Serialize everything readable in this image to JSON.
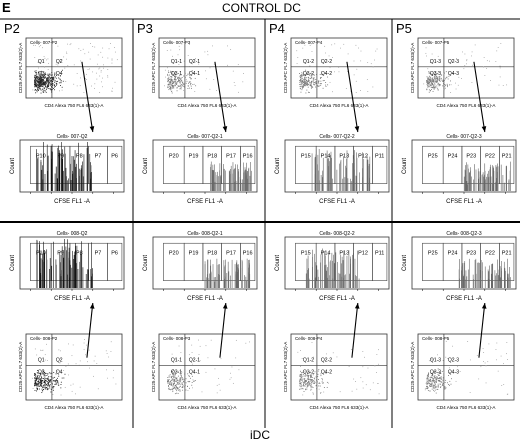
{
  "figure": {
    "panel_letter": "E",
    "top_label": "CONTROL DC",
    "bottom_label": "iDC",
    "columns": [
      "P2",
      "P3",
      "P4",
      "P5"
    ]
  },
  "top_row": {
    "scatter": [
      {
        "title": "Cells- 007-P2",
        "quadrants": [
          "Q1",
          "Q2",
          "Q3",
          "Q4"
        ]
      },
      {
        "title": "Cells- 007-P3",
        "quadrants": [
          "Q1-1",
          "Q2-1",
          "Q3-1",
          "Q4-1"
        ]
      },
      {
        "title": "Cells- 007-P4",
        "quadrants": [
          "Q1-2",
          "Q2-2",
          "Q3-2",
          "Q4-2"
        ]
      },
      {
        "title": "Cells- 007-P5",
        "quadrants": [
          "Q1-3",
          "Q2-3",
          "Q3-3",
          "Q4-3"
        ]
      }
    ],
    "histograms": [
      {
        "title": "Cells- 007-Q2",
        "gates": [
          "P10",
          "P9",
          "P8",
          "P7",
          "P6"
        ]
      },
      {
        "title": "Cells- 007-Q2-1",
        "gates": [
          "P20",
          "P19",
          "P18",
          "P17",
          "P16"
        ]
      },
      {
        "title": "Cells- 007-Q2-2",
        "gates": [
          "P15",
          "P14",
          "P13",
          "P12",
          "P11"
        ]
      },
      {
        "title": "Cells- 007-Q2-3",
        "gates": [
          "P25",
          "P24",
          "P23",
          "P22",
          "P21"
        ]
      }
    ]
  },
  "bottom_row": {
    "histograms": [
      {
        "title": "Cells- 008-Q2",
        "gates": [
          "P10",
          "P9",
          "P8",
          "P7",
          "P6"
        ]
      },
      {
        "title": "Cells- 008-Q2-1",
        "gates": [
          "P20",
          "P19",
          "P18",
          "P17",
          "P16"
        ]
      },
      {
        "title": "Cells- 008-Q2-2",
        "gates": [
          "P15",
          "P14",
          "P13",
          "P12",
          "P11"
        ]
      },
      {
        "title": "Cells- 008-Q2-3",
        "gates": [
          "P25",
          "P24",
          "P23",
          "P22",
          "P21"
        ]
      }
    ],
    "scatter": [
      {
        "title": "Cells- 008-P2",
        "quadrants": [
          "Q1",
          "Q2",
          "Q3",
          "Q4"
        ]
      },
      {
        "title": "Cells- 008-P3",
        "quadrants": [
          "Q1-1",
          "Q2-1",
          "Q3-1",
          "Q4-1"
        ]
      },
      {
        "title": "Cells- 008-P4",
        "quadrants": [
          "Q1-2",
          "Q2-2",
          "Q3-2",
          "Q4-2"
        ]
      },
      {
        "title": "Cells- 008-P5",
        "quadrants": [
          "Q1-3",
          "Q2-3",
          "Q3-3",
          "Q4-3"
        ]
      }
    ]
  },
  "axes": {
    "scatter_x": "CD4 Alexa 750 FL6 633(1)-A",
    "scatter_y": "CD25 APC FL7 633(2)-A",
    "hist_x": "CFSE FL1 -A",
    "hist_y": "Count"
  }
}
